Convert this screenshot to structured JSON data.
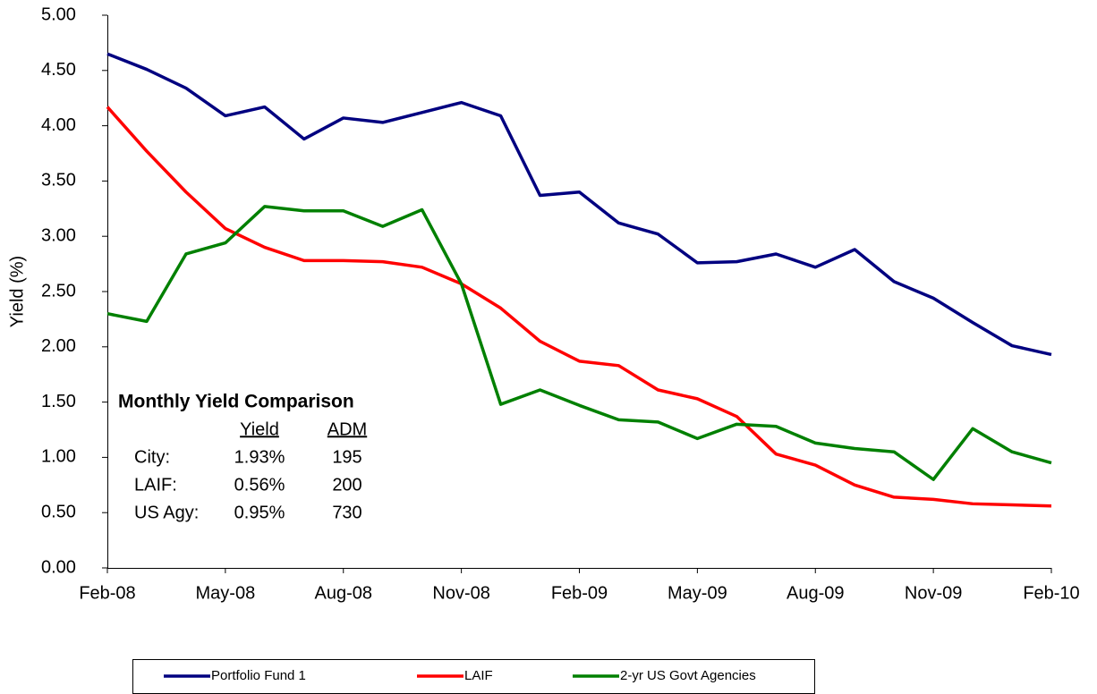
{
  "chart_data": {
    "type": "line",
    "y_label": "Yield (%)",
    "categories": [
      "Feb-08",
      null,
      null,
      "May-08",
      null,
      null,
      "Aug-08",
      null,
      null,
      "Nov-08",
      null,
      null,
      "Feb-09",
      null,
      null,
      "May-09",
      null,
      null,
      "Aug-09",
      null,
      null,
      "Nov-09",
      null,
      null,
      "Feb-10"
    ],
    "series": [
      {
        "name": "Portfolio Fund 1",
        "color": "#000080",
        "values": [
          4.65,
          4.51,
          4.34,
          4.09,
          4.17,
          3.88,
          4.07,
          4.03,
          4.12,
          4.21,
          4.09,
          3.37,
          3.4,
          3.12,
          3.02,
          2.76,
          2.77,
          2.84,
          2.72,
          2.88,
          2.59,
          2.44,
          2.22,
          2.01,
          1.93
        ]
      },
      {
        "name": "LAIF",
        "color": "#ff0000",
        "values": [
          4.17,
          3.77,
          3.4,
          3.07,
          2.9,
          2.78,
          2.78,
          2.77,
          2.72,
          2.57,
          2.35,
          2.05,
          1.87,
          1.83,
          1.61,
          1.53,
          1.37,
          1.03,
          0.93,
          0.75,
          0.64,
          0.62,
          0.58,
          0.57,
          0.56
        ]
      },
      {
        "name": "2-yr US Govt Agencies",
        "color": "#008000",
        "values": [
          2.3,
          2.23,
          2.84,
          2.94,
          3.27,
          3.23,
          3.23,
          3.09,
          3.24,
          2.57,
          1.48,
          1.61,
          1.47,
          1.34,
          1.32,
          1.17,
          1.3,
          1.28,
          1.13,
          1.08,
          1.05,
          0.8,
          1.26,
          1.05,
          0.95
        ]
      }
    ],
    "ylim": [
      0,
      5
    ],
    "yticks": [
      {
        "value": 0,
        "label": "0.00"
      },
      {
        "value": 0.5,
        "label": "0.50"
      },
      {
        "value": 1,
        "label": "1.00"
      },
      {
        "value": 1.5,
        "label": "1.50"
      },
      {
        "value": 2,
        "label": "2.00"
      },
      {
        "value": 2.5,
        "label": "2.50"
      },
      {
        "value": 3,
        "label": "3.00"
      },
      {
        "value": 3.5,
        "label": "3.50"
      },
      {
        "value": 4,
        "label": "4.00"
      },
      {
        "value": 4.5,
        "label": "4.50"
      },
      {
        "value": 5,
        "label": "5.00"
      }
    ],
    "grid": false,
    "legend": "bottom",
    "annotation": {
      "title": "Monthly Yield Comparison",
      "columns": [
        "Yield",
        "ADM"
      ],
      "rows": [
        [
          "City:",
          "1.93%",
          "195"
        ],
        [
          "LAIF:",
          "0.56%",
          "200"
        ],
        [
          "US Agy:",
          "0.95%",
          "730"
        ]
      ]
    }
  }
}
